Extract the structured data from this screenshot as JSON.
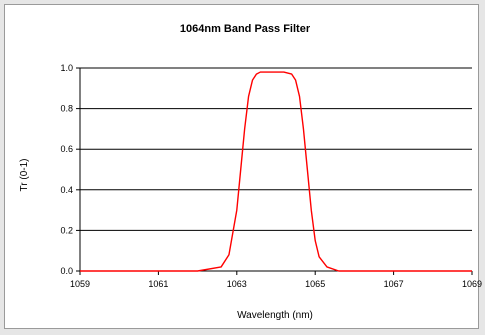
{
  "chart_data": {
    "type": "line",
    "title": "1064nm Band Pass Filter",
    "xlabel": "Wavelength (nm)",
    "ylabel": "Tr (0-1)",
    "xlim": [
      1059,
      1069
    ],
    "ylim": [
      0,
      1.0
    ],
    "x_ticks": [
      "1059",
      "1061",
      "1063",
      "1065",
      "1067",
      "1069"
    ],
    "y_ticks": [
      "0.0",
      "0.2",
      "0.4",
      "0.6",
      "0.8",
      "1.0"
    ],
    "grid": "horizontal",
    "legend": "none",
    "series": [
      {
        "color": "#ff0000",
        "x": [
          1059.0,
          1060.0,
          1061.0,
          1062.0,
          1062.6,
          1062.8,
          1063.0,
          1063.1,
          1063.2,
          1063.3,
          1063.4,
          1063.5,
          1063.6,
          1063.8,
          1064.0,
          1064.2,
          1064.4,
          1064.5,
          1064.6,
          1064.7,
          1064.8,
          1064.9,
          1065.0,
          1065.1,
          1065.3,
          1065.6,
          1066.0,
          1067.0,
          1068.0,
          1069.0
        ],
        "values": [
          0.0,
          0.0,
          0.0,
          0.0,
          0.02,
          0.08,
          0.3,
          0.5,
          0.7,
          0.86,
          0.94,
          0.97,
          0.98,
          0.98,
          0.98,
          0.98,
          0.97,
          0.94,
          0.86,
          0.7,
          0.5,
          0.3,
          0.15,
          0.07,
          0.02,
          0.0,
          0.0,
          0.0,
          0.0,
          0.0
        ]
      }
    ]
  }
}
